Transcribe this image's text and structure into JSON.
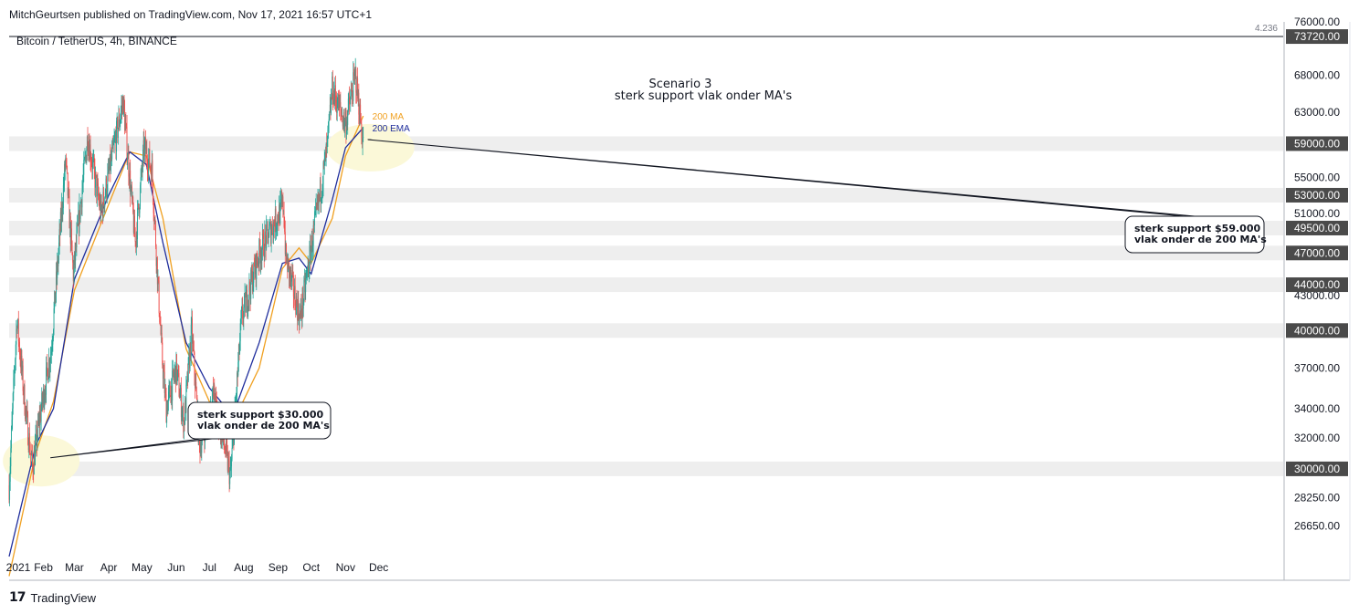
{
  "header": {
    "publisher": "MitchGeurtsen published on TradingView.com, Nov 17, 2021 16:57 UTC+1",
    "symbol": "Bitcoin / TetherUS, 4h, BINANCE"
  },
  "footer": {
    "logo_mark": "17",
    "brand": "TradingView"
  },
  "colors": {
    "candle_up": "#26a69a",
    "candle_down": "#ef5350",
    "ma200": "#f0a020",
    "ema200": "#1f2d9c",
    "zone": "#eeeeee",
    "label_bg": "#4a4a4a",
    "highlight": "#fbf8d8"
  },
  "chart_data": {
    "type": "candlestick",
    "title": "Scenario 3",
    "subtitle": "sterk support vlak onder MA's",
    "y_scale": "log",
    "ylim": [
      25000,
      76000
    ],
    "x_ticks": [
      "2021",
      "Feb",
      "Mar",
      "Apr",
      "May",
      "Jun",
      "Jul",
      "Aug",
      "Sep",
      "Oct",
      "Nov",
      "Dec"
    ],
    "y_ticks": [
      "76000.00",
      "68000.00",
      "63000.00",
      "55000.00",
      "51000.00",
      "47000.00",
      "43000.00",
      "37000.00",
      "34000.00",
      "32000.00",
      "28250.00",
      "26650.00"
    ],
    "top_line": {
      "label": "4.236",
      "value": 73720
    },
    "support_zones": [
      {
        "value": 73720,
        "label": "73720.00"
      },
      {
        "value": 59000,
        "label": "59000.00"
      },
      {
        "value": 53000,
        "label": "53000.00"
      },
      {
        "value": 49500,
        "label": "49500.00"
      },
      {
        "value": 47000,
        "label": "47000.00"
      },
      {
        "value": 44000,
        "label": "44000.00"
      },
      {
        "value": 40000,
        "label": "40000.00"
      },
      {
        "value": 30000,
        "label": "30000.00"
      }
    ],
    "series": [
      {
        "name": "200 MA",
        "x": [
          "Jan 01",
          "Jan 25",
          "Feb 10",
          "Mar 01",
          "Apr 01",
          "Apr 20",
          "May 05",
          "May 20",
          "Jun 10",
          "Jul 01",
          "Jul 22",
          "Aug 15",
          "Sep 05",
          "Sep 20",
          "Oct 01",
          "Oct 20",
          "Nov 01",
          "Nov 17"
        ],
        "values": [
          24000,
          31000,
          34500,
          43500,
          52000,
          58000,
          57500,
          50500,
          38500,
          34500,
          33000,
          37000,
          45500,
          47500,
          46000,
          50500,
          57500,
          62500
        ]
      },
      {
        "name": "200 EMA",
        "x": [
          "Jan 01",
          "Jan 25",
          "Feb 10",
          "Mar 01",
          "Apr 01",
          "Apr 20",
          "May 05",
          "May 20",
          "Jun 10",
          "Jul 01",
          "Jul 22",
          "Aug 15",
          "Sep 05",
          "Sep 20",
          "Oct 01",
          "Oct 20",
          "Nov 01",
          "Nov 17"
        ],
        "values": [
          25000,
          31500,
          34000,
          44500,
          53000,
          58000,
          56500,
          48000,
          39000,
          35500,
          33500,
          39000,
          46000,
          46500,
          45000,
          52500,
          58500,
          61000
        ]
      },
      {
        "name": "price",
        "x": [
          "Jan 01",
          "Jan 08",
          "Jan 15",
          "Jan 22",
          "Jan 29",
          "Feb 08",
          "Feb 21",
          "Feb 28",
          "Mar 13",
          "Mar 25",
          "Apr 14",
          "Apr 25",
          "May 03",
          "May 10",
          "May 19",
          "May 23",
          "Jun 01",
          "Jun 08",
          "Jun 15",
          "Jun 22",
          "Jul 05",
          "Jul 20",
          "Jul 30",
          "Aug 15",
          "Sep 06",
          "Sep 08",
          "Sep 21",
          "Oct 01",
          "Oct 15",
          "Oct 20",
          "Nov 01",
          "Nov 10",
          "Nov 17"
        ],
        "values": [
          29000,
          41000,
          34500,
          30000,
          33500,
          38500,
          57000,
          45000,
          60000,
          51000,
          64500,
          48000,
          58500,
          56000,
          38000,
          34000,
          37000,
          33000,
          40000,
          31500,
          35000,
          29500,
          41000,
          47000,
          52000,
          46500,
          41000,
          47500,
          58000,
          66000,
          61500,
          68000,
          59000
        ]
      }
    ],
    "annotations": [
      {
        "line1": "sterk support $30.000",
        "line2": "vlak onder de 200 MA's",
        "target": "Jan 30"
      },
      {
        "line1": "sterk support $59.000",
        "line2": "vlak onder de 200 MA's",
        "target": "Nov 17"
      }
    ]
  }
}
